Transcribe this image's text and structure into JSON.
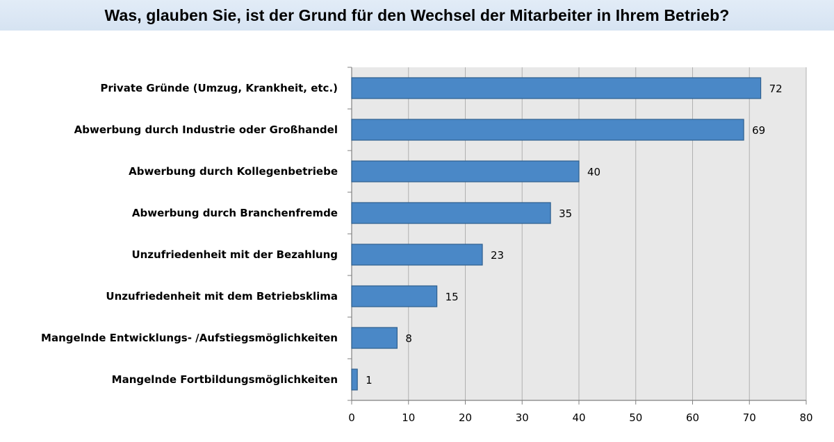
{
  "chart_data": {
    "type": "bar",
    "orientation": "horizontal",
    "title": "Was, glauben Sie, ist der Grund für den Wechsel der Mitarbeiter in Ihrem Betrieb?",
    "categories": [
      "Private Gründe (Umzug, Krankheit, etc.)",
      "Abwerbung durch Industrie oder Großhandel",
      "Abwerbung durch Kollegenbetriebe",
      "Abwerbung durch Branchenfremde",
      "Unzufriedenheit mit der Bezahlung",
      "Unzufriedenheit mit dem Betriebsklima",
      "Mangelnde Entwicklungs- /Aufstiegsmöglichkeiten",
      "Mangelnde Fortbildungsmöglichkeiten"
    ],
    "values": [
      72,
      69,
      40,
      35,
      23,
      15,
      8,
      1
    ],
    "xlim": [
      0,
      80
    ],
    "xticks": [
      "0",
      "10",
      "20",
      "30",
      "40",
      "50",
      "60",
      "70",
      "80"
    ],
    "xlabel": "",
    "ylabel": "",
    "grid": true,
    "colors": {
      "bar": "#4a88c7",
      "bar_edge": "#2e5f8e",
      "plot_bg": "#e8e8e8",
      "gridline": "#b0b0b0",
      "title_bg": "#dae5f3"
    }
  }
}
